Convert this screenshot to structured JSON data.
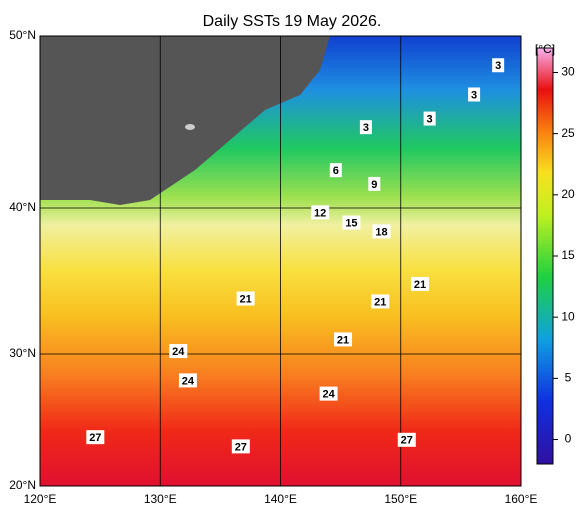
{
  "map": {
    "title": "Daily SSTs 19 May 2026.",
    "lon_range": [
      120,
      160
    ],
    "lon_ticks": [
      {
        "value": 120,
        "label": "120°E"
      },
      {
        "value": 130,
        "label": "130°E"
      },
      {
        "value": 140,
        "label": "140°E"
      },
      {
        "value": 150,
        "label": "150°E"
      },
      {
        "value": 160,
        "label": "160°E"
      }
    ],
    "lat_ticks": [
      {
        "value": 20,
        "label": "20°N"
      },
      {
        "value": 30,
        "label": "30°N"
      },
      {
        "value": 40,
        "label": "40°N"
      },
      {
        "value": 50,
        "label": "50°N"
      }
    ],
    "colorbar": {
      "unit": "[°C]",
      "range": [
        -2,
        32
      ],
      "ticks": [
        0,
        5,
        10,
        15,
        20,
        25,
        30
      ]
    },
    "contour_labels": [
      {
        "text": "3",
        "lon": 158.1,
        "lat": 48.3
      },
      {
        "text": "3",
        "lon": 156.1,
        "lat": 46.6
      },
      {
        "text": "3",
        "lon": 152.4,
        "lat": 45.2
      },
      {
        "text": "3",
        "lon": 147.1,
        "lat": 44.7
      },
      {
        "text": "6",
        "lon": 144.6,
        "lat": 42.2
      },
      {
        "text": "9",
        "lon": 147.8,
        "lat": 41.4
      },
      {
        "text": "12",
        "lon": 143.3,
        "lat": 39.7
      },
      {
        "text": "15",
        "lon": 145.9,
        "lat": 39.0
      },
      {
        "text": "18",
        "lon": 148.4,
        "lat": 38.4
      },
      {
        "text": "21",
        "lon": 137.1,
        "lat": 33.8
      },
      {
        "text": "21",
        "lon": 148.3,
        "lat": 33.6
      },
      {
        "text": "21",
        "lon": 151.6,
        "lat": 34.8
      },
      {
        "text": "21",
        "lon": 145.2,
        "lat": 31.0
      },
      {
        "text": "24",
        "lon": 131.5,
        "lat": 30.2
      },
      {
        "text": "24",
        "lon": 132.3,
        "lat": 28.0
      },
      {
        "text": "24",
        "lon": 144.0,
        "lat": 27.0
      },
      {
        "text": "27",
        "lon": 124.6,
        "lat": 23.7
      },
      {
        "text": "27",
        "lon": 136.7,
        "lat": 23.0
      },
      {
        "text": "27",
        "lon": 150.5,
        "lat": 23.5
      }
    ]
  }
}
